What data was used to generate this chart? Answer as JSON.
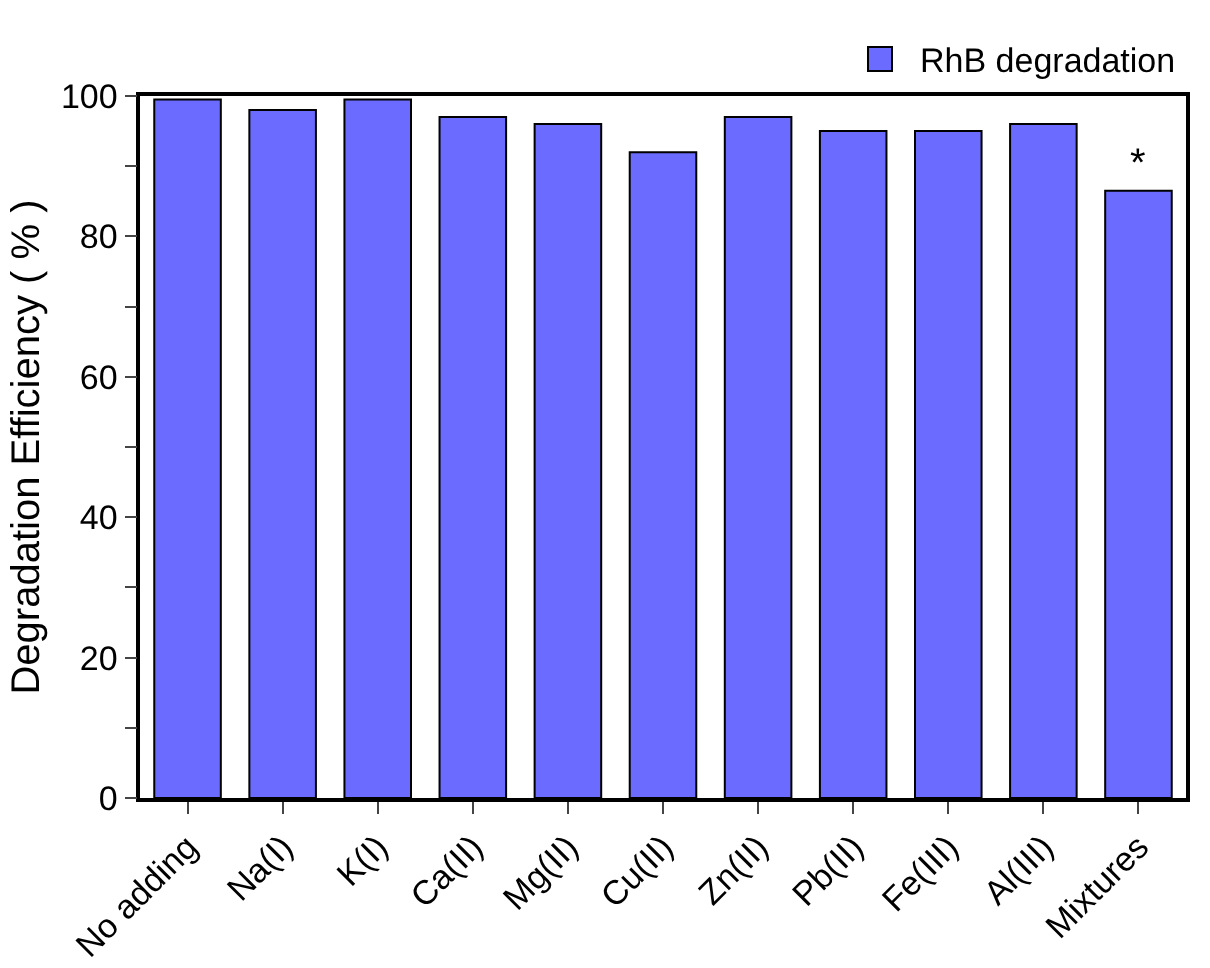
{
  "chart_data": {
    "type": "bar",
    "ylabel": "Degradation Efficiency ( % )",
    "categories": [
      "No adding",
      "Na(I)",
      "K(I)",
      "Ca(II)",
      "Mg(II)",
      "Cu(II)",
      "Zn(II)",
      "Pb(II)",
      "Fe(III)",
      "Al(III)",
      "Mixtures"
    ],
    "series": [
      {
        "name": "RhB degradation",
        "color": "#6b6bff",
        "values": [
          99.5,
          98,
          99.5,
          97,
          96,
          92,
          97,
          95,
          95,
          96,
          86.5
        ]
      }
    ],
    "ylim": [
      0,
      100
    ],
    "yticks": [
      0,
      {
        "value": 10,
        "label": null
      },
      20,
      {
        "value": 30,
        "label": null
      },
      40,
      {
        "value": 50,
        "label": null
      },
      60,
      {
        "value": 70,
        "label": null
      },
      80,
      {
        "value": 90,
        "label": null
      },
      100
    ],
    "annotations": [
      {
        "text": "*",
        "x": "Mixtures",
        "y": 86.5
      }
    ],
    "legend": "top right",
    "grid": false
  }
}
